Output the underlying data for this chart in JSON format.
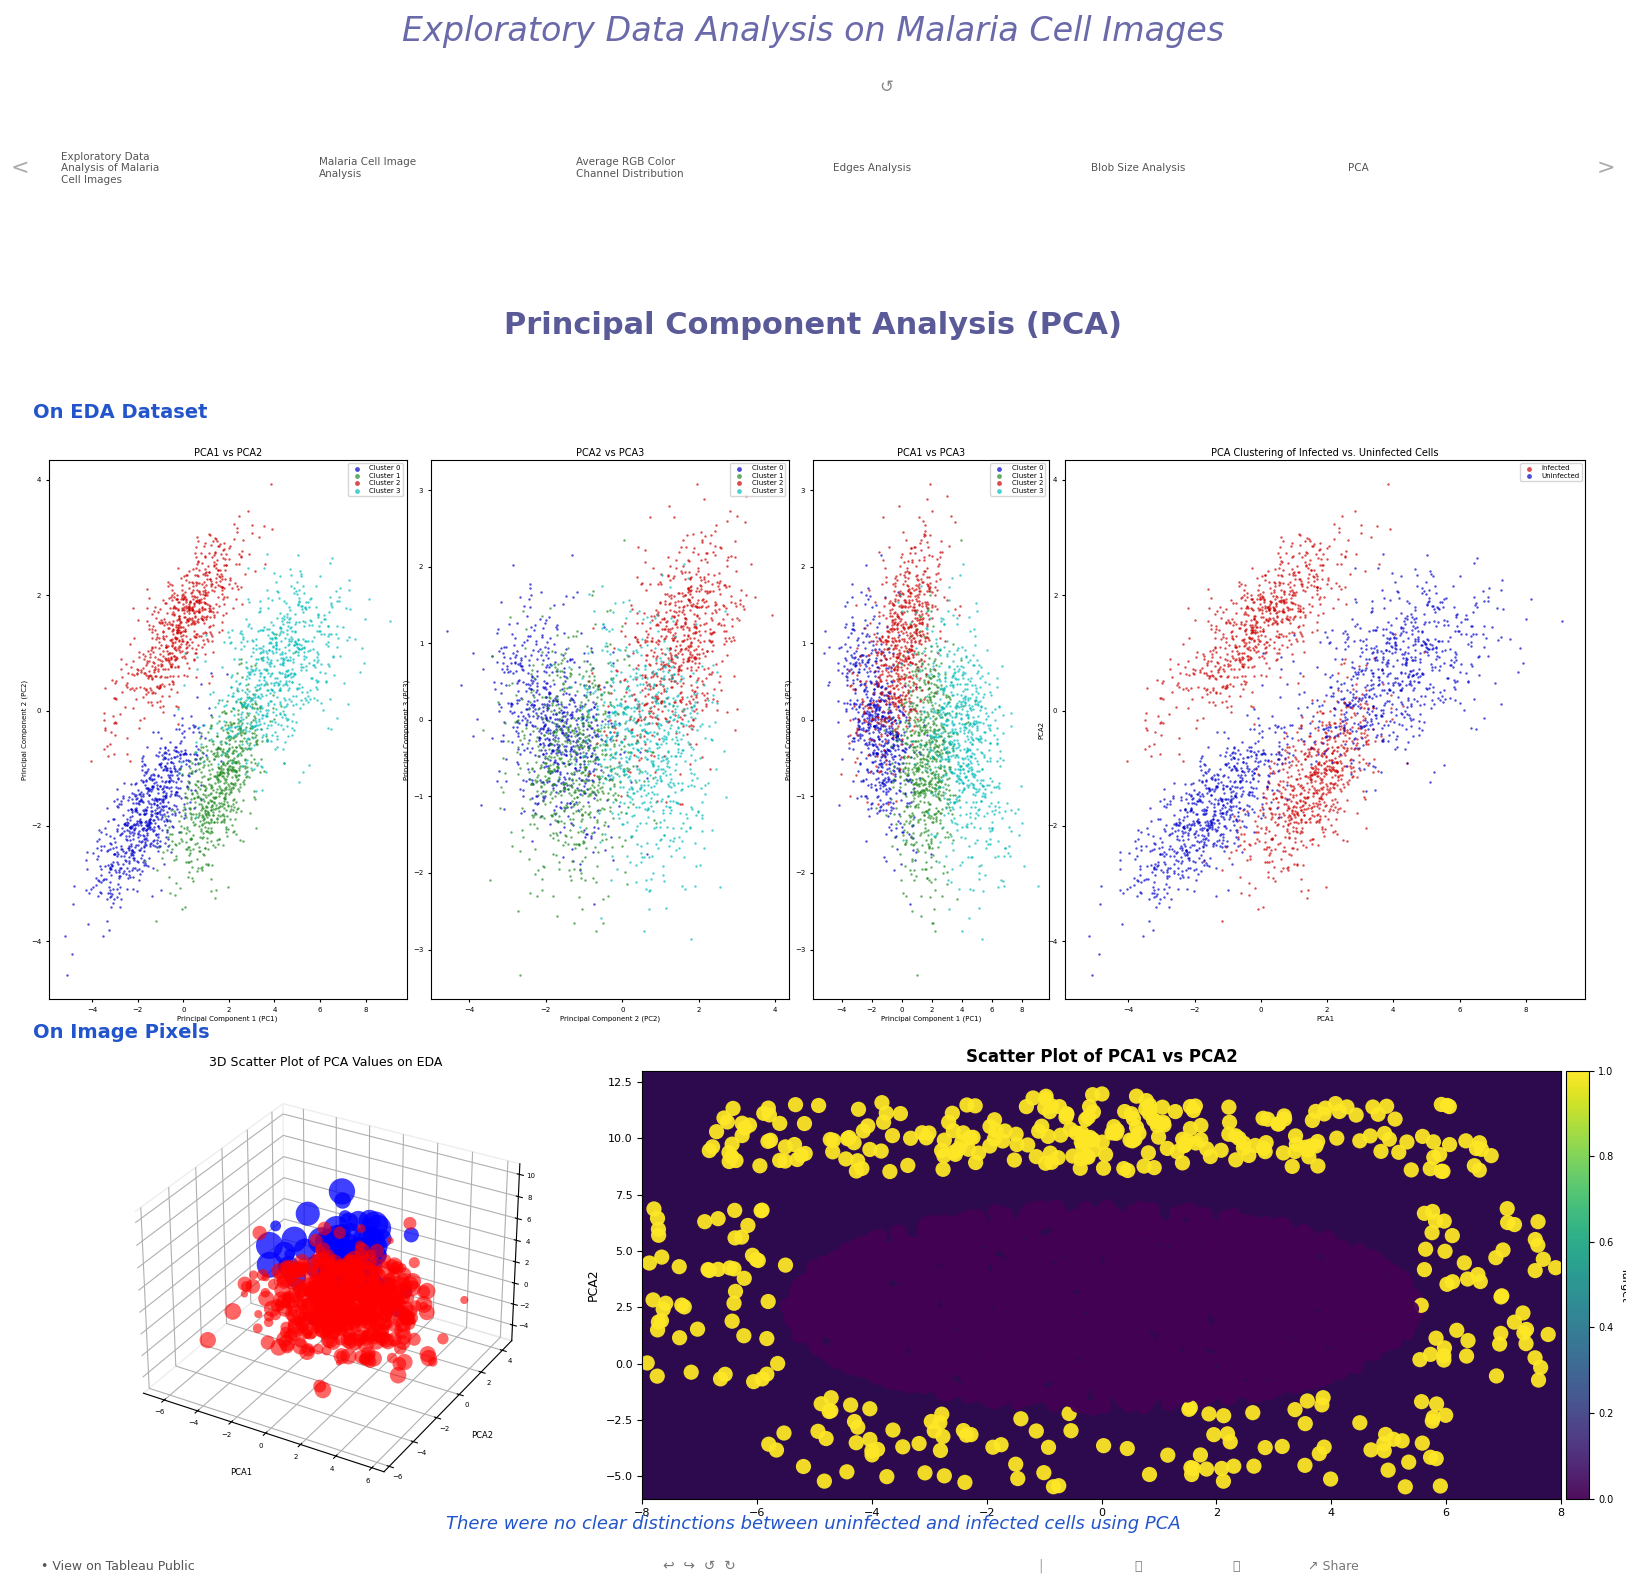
{
  "main_title": "Exploratory Data Analysis on Malaria Cell Images",
  "main_title_color": "#6a6aaa",
  "subtitle": "Principal Component Analysis (PCA)",
  "subtitle_color": "#5a5a99",
  "section1_label": "On EDA Dataset",
  "section2_label": "On Image Pixels",
  "section_label_color": "#2255cc",
  "nav_items": [
    "Exploratory Data\nAnalysis of Malaria\nCell Images",
    "Malaria Cell Image\nAnalysis",
    "Average RGB Color\nChannel Distribution",
    "Edges Analysis",
    "Blob Size Analysis",
    "PCA"
  ],
  "nav_active_index": 5,
  "nav_bg": "#e8e8e8",
  "nav_active_bg": "#d8d8d8",
  "plot1_title": "PCA1 vs PCA2",
  "plot2_title": "PCA2 vs PCA3",
  "plot3_title": "PCA1 vs PCA3",
  "plot4_title": "PCA Clustering of Infected vs. Uninfected Cells",
  "cluster_colors": [
    "#0000cc",
    "#228B22",
    "#cc0000",
    "#00bbbb"
  ],
  "cluster_labels": [
    "Cluster 0",
    "Cluster 1",
    "Cluster 2",
    "Cluster 3"
  ],
  "infected_colors": [
    "#cc0000",
    "#0000cc"
  ],
  "infected_labels": [
    "Infected",
    "Uninfected"
  ],
  "plot5_title": "3D Scatter Plot of PCA Values on EDA",
  "plot6_title": "Scatter Plot of PCA1 vs PCA2",
  "bottom_text": "There were no clear distinctions between uninfected and infected cells using PCA",
  "bottom_text_color": "#2255cc",
  "background_color": "#ffffff",
  "footer_text": "View on Tableau Public",
  "colorbar_label": "Target",
  "refresh_symbol": "↺"
}
